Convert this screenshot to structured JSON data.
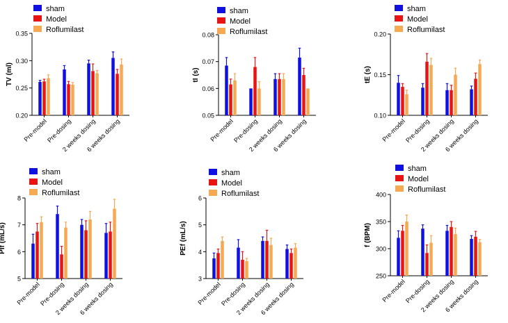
{
  "colors": {
    "sham": "#1010e0",
    "model": "#e81414",
    "roflumilast": "#f5a952",
    "axis": "#000000",
    "text": "#000000"
  },
  "chart_data": [
    {
      "type": "bar",
      "ylabel": "TV (ml)",
      "ylim": [
        0.2,
        0.35
      ],
      "yticks": [
        "0.20",
        "0.25",
        "0.30",
        "0.35"
      ],
      "categories": [
        "Pre-model",
        "Pre-dosing",
        "2 weeks dosing",
        "6 weeks dosing"
      ],
      "legend": [
        "sham",
        "Model",
        "Roflumilast"
      ],
      "series": [
        {
          "name": "sham",
          "values": [
            0.261,
            0.284,
            0.295,
            0.305
          ],
          "errors": [
            0.003,
            0.007,
            0.006,
            0.011
          ]
        },
        {
          "name": "Model",
          "values": [
            0.262,
            0.257,
            0.281,
            0.276
          ],
          "errors": [
            0.004,
            0.005,
            0.013,
            0.008
          ]
        },
        {
          "name": "Roflumilast",
          "values": [
            0.268,
            0.256,
            0.277,
            0.293
          ],
          "errors": [
            0.006,
            0.004,
            0.005,
            0.01
          ]
        }
      ]
    },
    {
      "type": "bar",
      "ylabel": "tI (s)",
      "ylim": [
        0.05,
        0.08
      ],
      "yticks": [
        "0.05",
        "0.06",
        "0.07",
        "0.08"
      ],
      "categories": [
        "Pre-model",
        "Pre-dosing",
        "2 weeks dosing",
        "6 weeks dosing"
      ],
      "legend": [
        "sham",
        "Model",
        "Roflumilast"
      ],
      "series": [
        {
          "name": "sham",
          "values": [
            0.0685,
            0.06,
            0.0635,
            0.0715
          ],
          "errors": [
            0.003,
            0.0,
            0.002,
            0.0035
          ]
        },
        {
          "name": "Model",
          "values": [
            0.0615,
            0.068,
            0.0635,
            0.065
          ],
          "errors": [
            0.002,
            0.0035,
            0.002,
            0.0025
          ]
        },
        {
          "name": "Roflumilast",
          "values": [
            0.063,
            0.06,
            0.0635,
            0.06
          ],
          "errors": [
            0.0025,
            0.0025,
            0.002,
            0.0
          ]
        }
      ]
    },
    {
      "type": "bar",
      "ylabel": "tE (s)",
      "ylim": [
        0.1,
        0.2
      ],
      "yticks": [
        "0.10",
        "0.15",
        "0.20"
      ],
      "categories": [
        "Pre-model",
        "Pre-dosing",
        "2 weeks dosing",
        "6 weeks dosing"
      ],
      "legend": [
        "sham",
        "Model",
        "Roflumilast"
      ],
      "series": [
        {
          "name": "sham",
          "values": [
            0.14,
            0.134,
            0.131,
            0.132
          ],
          "errors": [
            0.009,
            0.005,
            0.008,
            0.004
          ]
        },
        {
          "name": "Model",
          "values": [
            0.135,
            0.166,
            0.131,
            0.145
          ],
          "errors": [
            0.004,
            0.01,
            0.006,
            0.007
          ]
        },
        {
          "name": "Roflumilast",
          "values": [
            0.126,
            0.162,
            0.15,
            0.163
          ],
          "errors": [
            0.005,
            0.008,
            0.008,
            0.005
          ]
        }
      ]
    },
    {
      "type": "bar",
      "ylabel": "PIf (mL/s)",
      "ylim": [
        5,
        8
      ],
      "yticks": [
        "5",
        "6",
        "7",
        "8"
      ],
      "categories": [
        "Pre-model",
        "Pre-dosing",
        "2 weeks dosing",
        "6 weeks dosing"
      ],
      "legend": [
        "sham",
        "Model",
        "Roflumilast"
      ],
      "series": [
        {
          "name": "sham",
          "values": [
            6.3,
            7.4,
            7.0,
            6.7
          ],
          "errors": [
            0.35,
            0.3,
            0.2,
            0.35
          ]
        },
        {
          "name": "Model",
          "values": [
            6.75,
            5.9,
            6.8,
            6.75
          ],
          "errors": [
            0.3,
            0.3,
            0.35,
            0.35
          ]
        },
        {
          "name": "Roflumilast",
          "values": [
            7.1,
            6.9,
            7.2,
            7.6
          ],
          "errors": [
            0.2,
            0.2,
            0.3,
            0.35
          ]
        }
      ]
    },
    {
      "type": "bar",
      "ylabel": "PEf (mL/s)",
      "ylim": [
        3,
        6
      ],
      "yticks": [
        "3",
        "4",
        "5",
        "6"
      ],
      "categories": [
        "Pre-model",
        "Pre-dosing",
        "2 weeks dosing",
        "6 weeks dosing"
      ],
      "legend": [
        "sham",
        "Model",
        "Roflumilast"
      ],
      "series": [
        {
          "name": "sham",
          "values": [
            3.75,
            4.15,
            4.4,
            4.1
          ],
          "errors": [
            0.2,
            0.3,
            0.15,
            0.15
          ]
        },
        {
          "name": "Model",
          "values": [
            3.95,
            3.7,
            4.4,
            3.95
          ],
          "errors": [
            0.15,
            0.3,
            0.4,
            0.15
          ]
        },
        {
          "name": "Roflumilast",
          "values": [
            4.4,
            3.65,
            4.25,
            4.15
          ],
          "errors": [
            0.15,
            0.1,
            0.25,
            0.15
          ]
        }
      ]
    },
    {
      "type": "bar",
      "ylabel": "f (BPM)",
      "ylim": [
        250,
        400
      ],
      "yticks": [
        "250",
        "300",
        "350",
        "400"
      ],
      "categories": [
        "Pre-model",
        "Pre-dosing",
        "2 weeks dosing",
        "6 weeks dosing"
      ],
      "legend": [
        "sham",
        "Model",
        "Roflumilast"
      ],
      "series": [
        {
          "name": "sham",
          "values": [
            320,
            337,
            333,
            318
          ],
          "errors": [
            13,
            7,
            10,
            6
          ]
        },
        {
          "name": "Model",
          "values": [
            333,
            292,
            340,
            322
          ],
          "errors": [
            10,
            15,
            10,
            10
          ]
        },
        {
          "name": "Roflumilast",
          "values": [
            350,
            311,
            327,
            312
          ],
          "errors": [
            12,
            13,
            11,
            5
          ]
        }
      ]
    }
  ]
}
